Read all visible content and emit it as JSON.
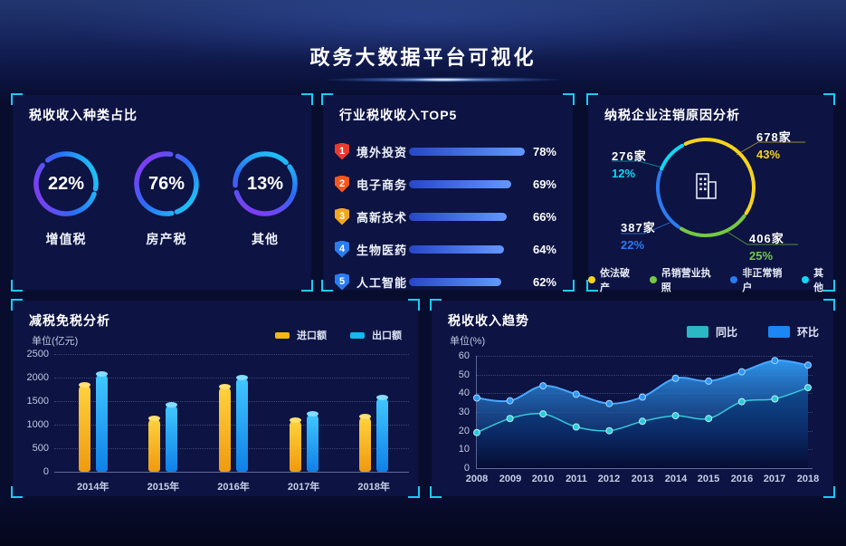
{
  "page": {
    "title": "政务大数据平台可视化"
  },
  "panels": {
    "tax_type": {
      "title": "税收收入种类占比"
    },
    "top5": {
      "title": "行业税收收入TOP5"
    },
    "deregistration": {
      "title": "纳税企业注销原因分析"
    },
    "reduction": {
      "title": "减税免税分析",
      "unit": "单位(亿元)"
    },
    "trend": {
      "title": "税收收入趋势",
      "unit": "单位(%)"
    }
  },
  "chart_data": [
    {
      "id": "tax-type-gauges",
      "type": "pie",
      "title": "税收收入种类占比",
      "items": [
        {
          "label": "增值税",
          "pct": "22%",
          "value": 22
        },
        {
          "label": "房产税",
          "pct": "76%",
          "value": 76
        },
        {
          "label": "其他",
          "pct": "13%",
          "value": 13
        }
      ],
      "ring_gradient": [
        "#8d35f2",
        "#2a6cf5",
        "#1ecdf5"
      ]
    },
    {
      "id": "industry-top5",
      "type": "bar",
      "title": "行业税收收入TOP5",
      "items": [
        {
          "rank": "1",
          "label": "境外投资",
          "value": 78,
          "pct": "78%",
          "badge_color": "#e93c2e"
        },
        {
          "rank": "2",
          "label": "电子商务",
          "value": 69,
          "pct": "69%",
          "badge_color": "#f4581e"
        },
        {
          "rank": "3",
          "label": "高新技术",
          "value": 66,
          "pct": "66%",
          "badge_color": "#f0a71c"
        },
        {
          "rank": "4",
          "label": "生物医药",
          "value": 64,
          "pct": "64%",
          "badge_color": "#2a7cf0"
        },
        {
          "rank": "5",
          "label": "人工智能",
          "value": 62,
          "pct": "62%",
          "badge_color": "#2a7cf0"
        }
      ],
      "bar_color": "#3c6ef0"
    },
    {
      "id": "deregistration-donut",
      "type": "pie",
      "title": "纳税企业注销原因分析",
      "segments": [
        {
          "label": "依法破产",
          "count": "678家",
          "pct": "43%",
          "value": 43,
          "color": "#f6d31d"
        },
        {
          "label": "吊销营业执照",
          "count": "406家",
          "pct": "25%",
          "value": 25,
          "color": "#74c944"
        },
        {
          "label": "非正常销户",
          "count": "387家",
          "pct": "22%",
          "value": 22,
          "color": "#2b7bf2"
        },
        {
          "label": "其他",
          "count": "276家",
          "pct": "12%",
          "value": 12,
          "color": "#12d6f2"
        }
      ],
      "legend_position": "bottom"
    },
    {
      "id": "reduction-bars",
      "type": "bar",
      "title": "减税免税分析",
      "ylabel": "单位(亿元)",
      "categories": [
        "2014年",
        "2015年",
        "2016年",
        "2017年",
        "2018年"
      ],
      "series": [
        {
          "name": "进口额",
          "color": "#f5b60e",
          "values": [
            1850,
            1130,
            1810,
            1100,
            1170
          ]
        },
        {
          "name": "出口额",
          "color": "#17b6f0",
          "values": [
            2080,
            1430,
            2000,
            1240,
            1570
          ]
        }
      ],
      "ylim": [
        0,
        2500
      ],
      "yticks": [
        0,
        500,
        1000,
        1500,
        2000,
        2500
      ],
      "grid": "dotted",
      "legend_position": "top-right"
    },
    {
      "id": "trend-areas",
      "type": "area",
      "title": "税收收入趋势",
      "ylabel": "单位(%)",
      "x": [
        "2008",
        "2009",
        "2010",
        "2011",
        "2012",
        "2013",
        "2014",
        "2015",
        "2016",
        "2017",
        "2018"
      ],
      "series": [
        {
          "name": "同比",
          "color": "#2bb7c4",
          "values": [
            19,
            26.5,
            29,
            22,
            20,
            25,
            28,
            26.5,
            35.5,
            37,
            43
          ]
        },
        {
          "name": "环比",
          "color": "#1c86f5",
          "values": [
            37.5,
            36,
            44,
            39.5,
            34.5,
            38,
            48,
            46.5,
            51.5,
            57.5,
            55
          ]
        }
      ],
      "ylim": [
        0,
        60
      ],
      "yticks": [
        0,
        10,
        20,
        30,
        40,
        50,
        60
      ],
      "grid": "dotted",
      "legend_position": "top-right"
    }
  ]
}
